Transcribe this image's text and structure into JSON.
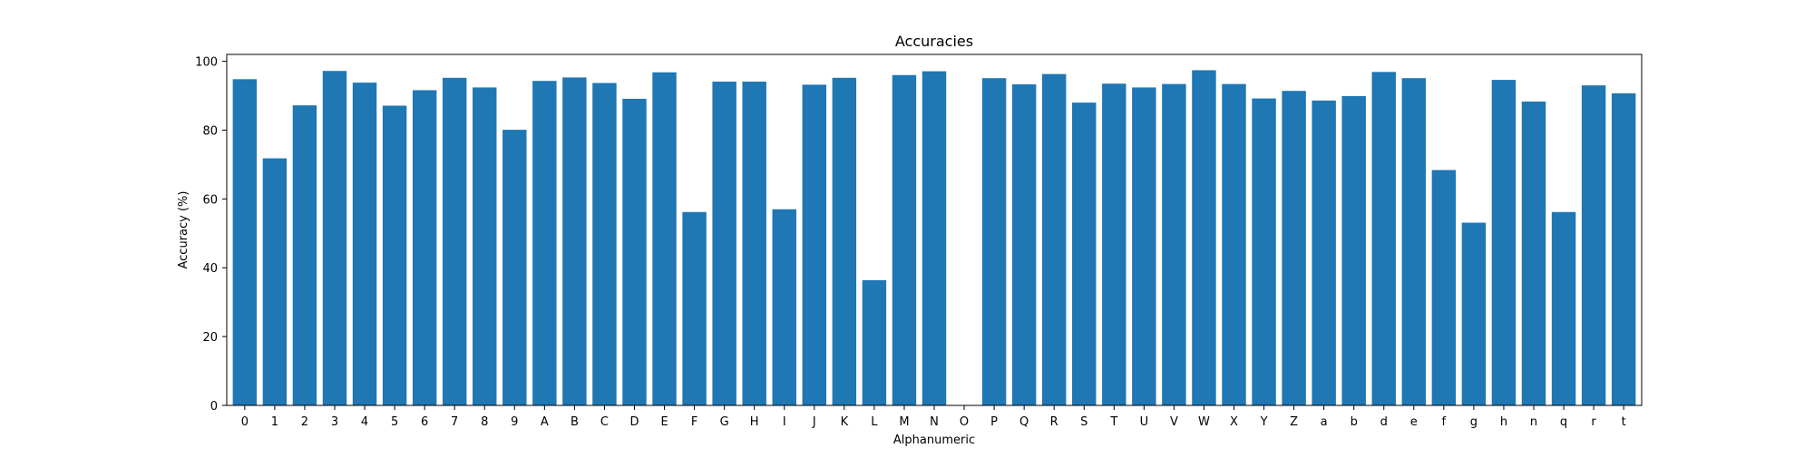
{
  "chart_data": {
    "type": "bar",
    "title": "Accuracies",
    "xlabel": "Alphanumeric",
    "ylabel": "Accuracy (%)",
    "ylim": [
      0,
      102
    ],
    "yticks": [
      0,
      20,
      40,
      60,
      80,
      100
    ],
    "grid": false,
    "bar_color": "#1f77b4",
    "categories": [
      "0",
      "1",
      "2",
      "3",
      "4",
      "5",
      "6",
      "7",
      "8",
      "9",
      "A",
      "B",
      "C",
      "D",
      "E",
      "F",
      "G",
      "H",
      "I",
      "J",
      "K",
      "L",
      "M",
      "N",
      "O",
      "P",
      "Q",
      "R",
      "S",
      "T",
      "U",
      "V",
      "W",
      "X",
      "Y",
      "Z",
      "a",
      "b",
      "d",
      "e",
      "f",
      "g",
      "h",
      "n",
      "q",
      "r",
      "t"
    ],
    "values": [
      94.8,
      71.8,
      87.2,
      97.2,
      93.8,
      87.1,
      91.6,
      95.2,
      92.4,
      80.1,
      94.3,
      95.3,
      93.7,
      89.1,
      96.8,
      56.2,
      94.1,
      94.1,
      57.0,
      93.2,
      95.2,
      36.4,
      96.0,
      97.1,
      0,
      95.1,
      93.3,
      96.3,
      88.0,
      93.5,
      92.4,
      93.4,
      97.4,
      93.4,
      89.2,
      91.4,
      88.6,
      89.9,
      96.9,
      95.1,
      68.4,
      53.1,
      94.6,
      88.3,
      56.2,
      93.0,
      90.7
    ]
  }
}
